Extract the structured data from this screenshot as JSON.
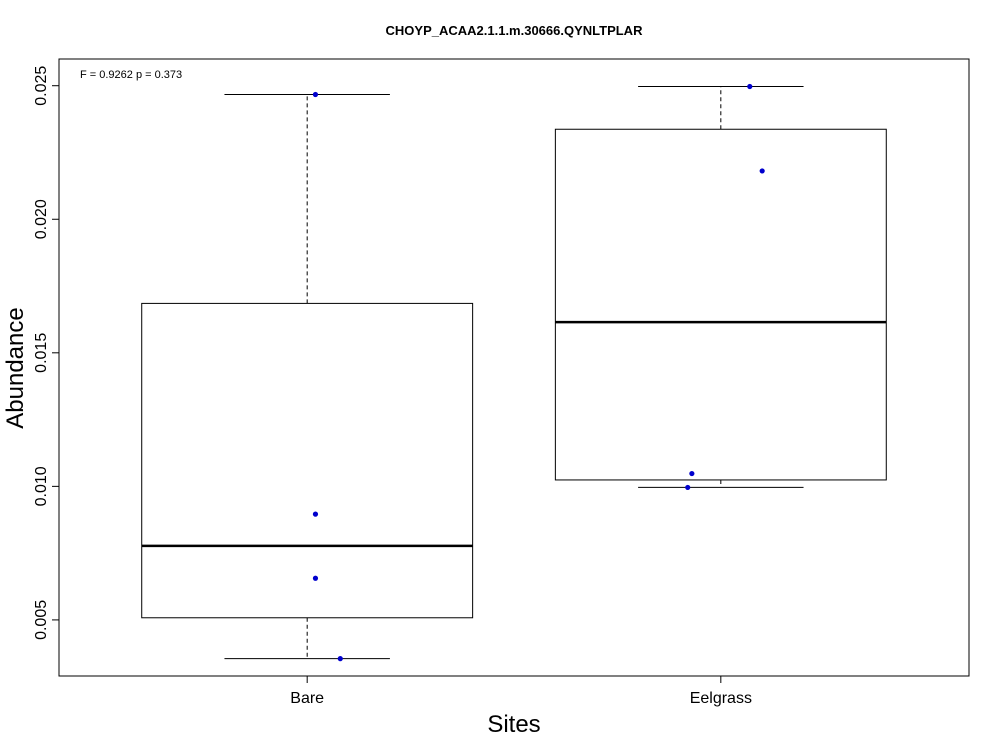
{
  "chart_data": {
    "type": "box",
    "title": "CHOYP_ACAA2.1.1.m.30666.QYNLTPLAR",
    "annotation": "F = 0.9262 p = 0.373",
    "xlabel": "Sites",
    "ylabel": "Abundance",
    "ylim": [
      0.0029,
      0.026
    ],
    "yticks": [
      0.005,
      0.01,
      0.015,
      0.02,
      0.025
    ],
    "ytick_labels": [
      "0.005",
      "0.010",
      "0.015",
      "0.020",
      "0.025"
    ],
    "grid": false,
    "categories": [
      "Bare",
      "Eelgrass"
    ],
    "boxes": [
      {
        "category": "Bare",
        "whisker_low": 0.00355,
        "q1": 0.00508,
        "median": 0.00777,
        "q3": 0.01685,
        "whisker_high": 0.02467
      },
      {
        "category": "Eelgrass",
        "whisker_low": 0.00996,
        "q1": 0.01024,
        "median": 0.01615,
        "q3": 0.02337,
        "whisker_high": 0.02497
      }
    ],
    "points": [
      {
        "category": "Bare",
        "jitter": 0.02,
        "y": 0.02467
      },
      {
        "category": "Bare",
        "jitter": 0.02,
        "y": 0.00896
      },
      {
        "category": "Bare",
        "jitter": 0.02,
        "y": 0.00656
      },
      {
        "category": "Bare",
        "jitter": 0.08,
        "y": 0.00355
      },
      {
        "category": "Eelgrass",
        "jitter": 0.07,
        "y": 0.02497
      },
      {
        "category": "Eelgrass",
        "jitter": 0.1,
        "y": 0.02181
      },
      {
        "category": "Eelgrass",
        "jitter": -0.07,
        "y": 0.01048
      },
      {
        "category": "Eelgrass",
        "jitter": -0.08,
        "y": 0.00996
      }
    ],
    "point_color": "#0000cd"
  }
}
